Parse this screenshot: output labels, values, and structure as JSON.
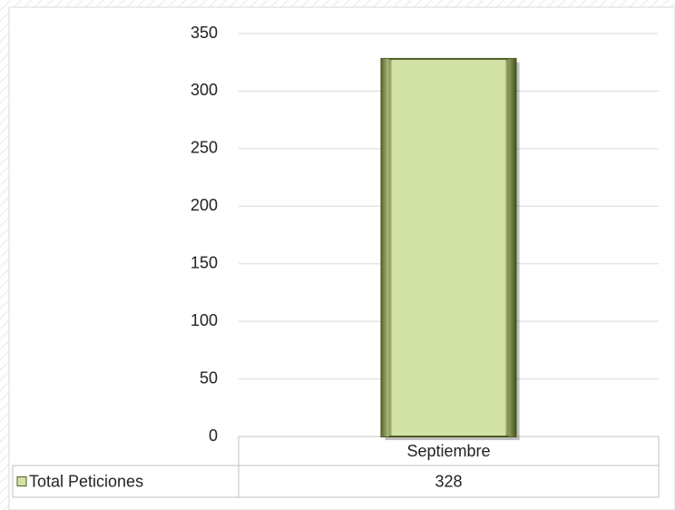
{
  "chart_data": {
    "type": "bar",
    "categories": [
      "Septiembre"
    ],
    "series": [
      {
        "name": "Total Peticiones",
        "color": "#d3e2a5",
        "values": [
          328
        ]
      }
    ],
    "ylim": [
      0,
      350
    ],
    "yticks": [
      0,
      50,
      100,
      150,
      200,
      250,
      300,
      350
    ],
    "grid": true,
    "data_table": true
  }
}
